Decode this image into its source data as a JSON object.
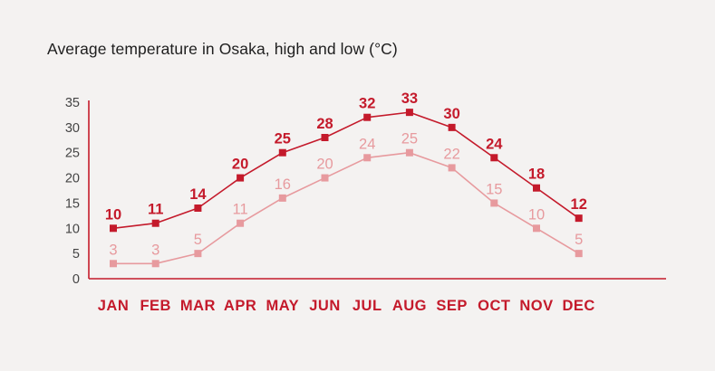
{
  "chart_data": {
    "type": "line",
    "title": "Average temperature in Osaka, high and low (°C)",
    "categories": [
      "JAN",
      "FEB",
      "MAR",
      "APR",
      "MAY",
      "JUN",
      "JUL",
      "AUG",
      "SEP",
      "OCT",
      "NOV",
      "DEC"
    ],
    "series": [
      {
        "key": "high",
        "values": [
          10,
          11,
          14,
          20,
          25,
          28,
          32,
          33,
          30,
          24,
          18,
          12
        ],
        "color": "#c41a2b"
      },
      {
        "key": "low",
        "values": [
          3,
          3,
          5,
          11,
          16,
          20,
          24,
          25,
          22,
          15,
          10,
          5
        ],
        "color": "#e79a9e"
      }
    ],
    "yticks": [
      0,
      5,
      10,
      15,
      20,
      25,
      30,
      35
    ],
    "ylim": [
      0,
      35
    ],
    "xlabel": "",
    "ylabel": "",
    "grid": false,
    "legend": "none",
    "axis_color": "#c41a2b",
    "tick_text_color": "#444444"
  }
}
